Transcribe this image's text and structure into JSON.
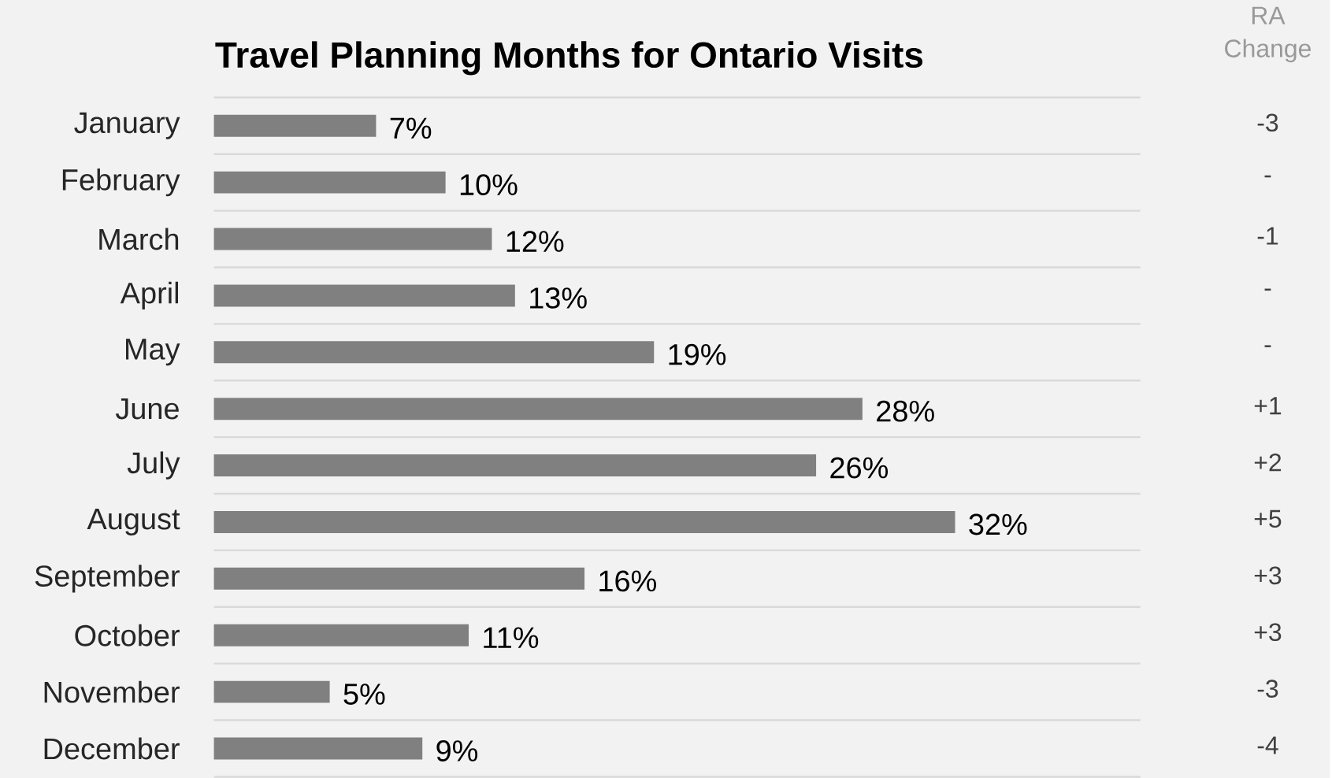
{
  "chart_data": {
    "type": "bar",
    "orientation": "horizontal",
    "title": "Travel Planning Months for Ontario Visits",
    "categories": [
      "January",
      "February",
      "March",
      "April",
      "May",
      "June",
      "July",
      "August",
      "September",
      "October",
      "November",
      "December"
    ],
    "values": [
      7,
      10,
      12,
      13,
      19,
      28,
      26,
      32,
      16,
      11,
      5,
      9
    ],
    "value_labels": [
      "7%",
      "10%",
      "12%",
      "13%",
      "19%",
      "28%",
      "26%",
      "32%",
      "16%",
      "11%",
      "5%",
      "9%"
    ],
    "color": "#808080",
    "xlim": [
      0,
      40
    ],
    "grid": "y",
    "tick_labels": "y",
    "annotations": [
      "RA Change",
      "-3",
      "-",
      "-1",
      "-",
      "-",
      "+1",
      "+2",
      "+5",
      "+3",
      "+3",
      "-3",
      "-4"
    ]
  }
}
